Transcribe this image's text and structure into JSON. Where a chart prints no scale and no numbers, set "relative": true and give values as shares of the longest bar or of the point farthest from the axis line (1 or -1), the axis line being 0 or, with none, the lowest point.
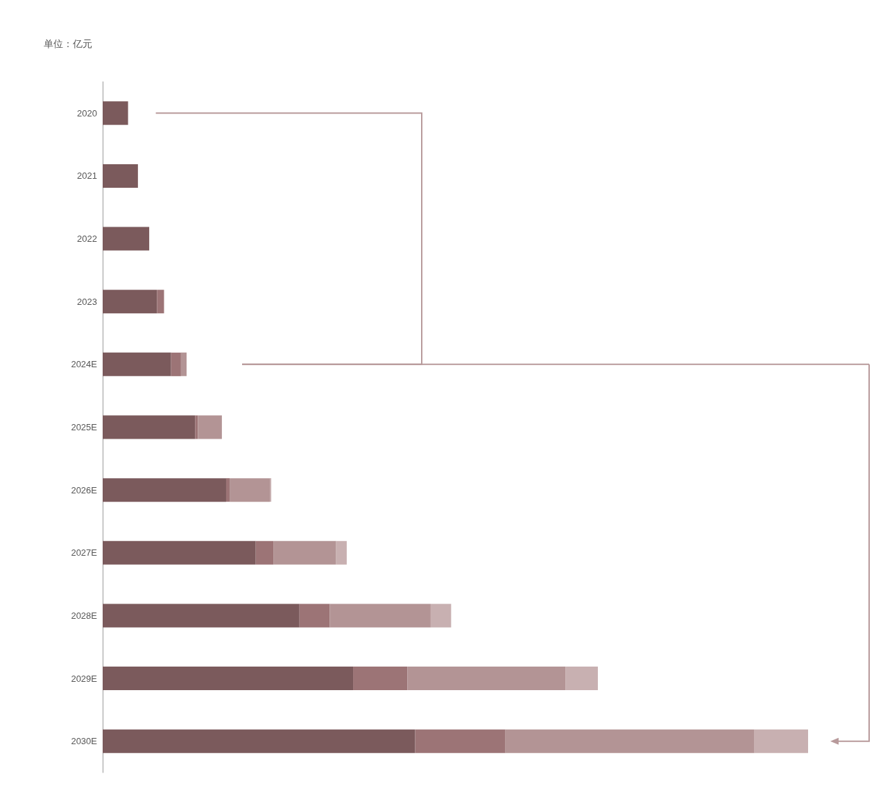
{
  "chart_data": {
    "type": "bar",
    "orientation": "horizontal",
    "stacked": true,
    "relative": true,
    "annotations": [
      "单位：亿元"
    ],
    "categories": [
      "2020",
      "2021",
      "2022",
      "2023",
      "2024E",
      "2025E",
      "2026E",
      "2027E",
      "2028E",
      "2029E",
      "2030E"
    ],
    "series": [
      {
        "color": "#7b5a5c",
        "values": [
          0.036,
          0.05,
          0.066,
          0.077,
          0.097,
          0.131,
          0.175,
          0.217,
          0.279,
          0.355,
          0.443
        ]
      },
      {
        "color": "#9c7476",
        "values": [
          null,
          null,
          null,
          0.01,
          0.014,
          0.004,
          0.005,
          0.025,
          0.043,
          0.077,
          0.128
        ]
      },
      {
        "color": "#b39495",
        "values": [
          null,
          null,
          null,
          null,
          0.008,
          0.034,
          0.057,
          0.089,
          0.143,
          0.224,
          0.353
        ]
      },
      {
        "color": "#c8b0b1",
        "values": [
          null,
          null,
          null,
          null,
          null,
          null,
          0.002,
          0.015,
          0.029,
          0.046,
          0.076
        ]
      }
    ]
  }
}
